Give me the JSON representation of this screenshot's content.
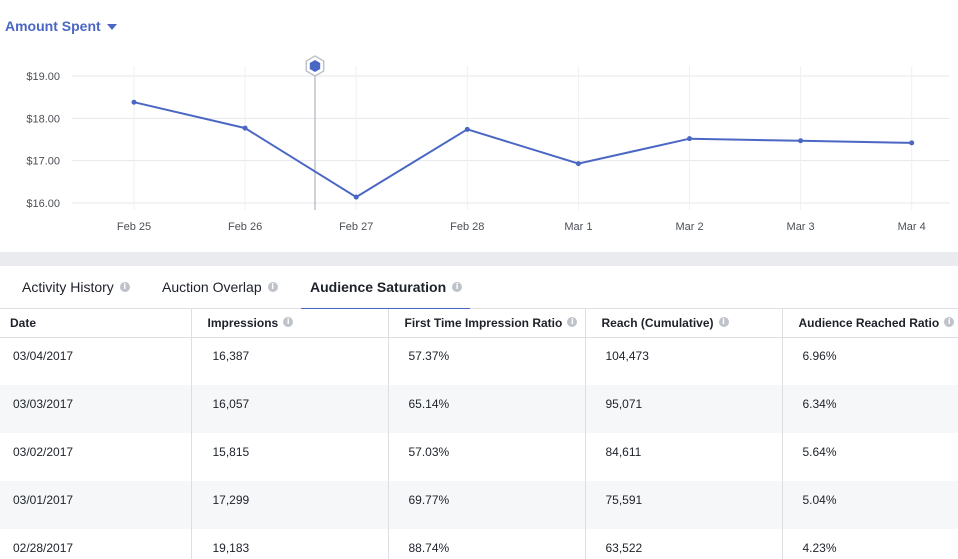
{
  "metric_selector": {
    "label": "Amount Spent",
    "icon": "caret-down-icon"
  },
  "chart_data": {
    "type": "line",
    "x": [
      "Feb 25",
      "Feb 26",
      "Feb 27",
      "Feb 28",
      "Mar 1",
      "Mar 2",
      "Mar 3",
      "Mar 4"
    ],
    "y": [
      18.38,
      17.77,
      16.14,
      17.74,
      16.93,
      17.52,
      17.47,
      17.42
    ],
    "yticks": [
      "$19.00",
      "$18.00",
      "$17.00",
      "$16.00"
    ],
    "yticks_values": [
      19,
      18,
      17,
      16
    ],
    "ylim": [
      16,
      19
    ],
    "grid": true,
    "line_color": "#4b67c4",
    "marker_icon": "hexagon-marker-icon"
  },
  "tabs": [
    {
      "label": "Activity History",
      "active": false
    },
    {
      "label": "Auction Overlap",
      "active": false
    },
    {
      "label": "Audience Saturation",
      "active": true
    }
  ],
  "table": {
    "columns": [
      "Date",
      "Impressions",
      "First Time Impression Ratio",
      "Reach (Cumulative)",
      "Audience Reached Ratio"
    ],
    "rows": [
      [
        "03/04/2017",
        "16,387",
        "57.37%",
        "104,473",
        "6.96%"
      ],
      [
        "03/03/2017",
        "16,057",
        "65.14%",
        "95,071",
        "6.34%"
      ],
      [
        "03/02/2017",
        "15,815",
        "57.03%",
        "84,611",
        "5.64%"
      ],
      [
        "03/01/2017",
        "17,299",
        "69.77%",
        "75,591",
        "5.04%"
      ],
      [
        "02/28/2017",
        "19,183",
        "88.74%",
        "63,522",
        "4.23%"
      ]
    ]
  },
  "colors": {
    "accent": "#4b67c4",
    "border": "#dddfe2",
    "row_alt": "#f6f7f9",
    "background_gap": "#e9ebee"
  }
}
